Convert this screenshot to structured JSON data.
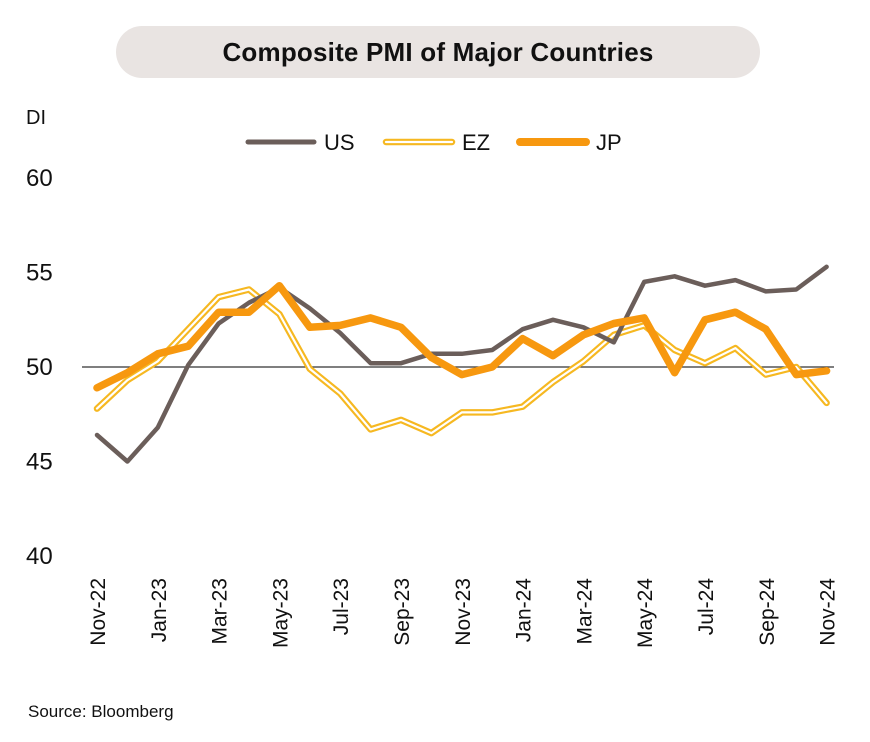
{
  "chart_data": {
    "type": "line",
    "title": "Composite PMI of Major Countries",
    "ylabel": "DI",
    "source": "Source: Bloomberg",
    "ylim": [
      40,
      60
    ],
    "yticks": [
      40,
      45,
      50,
      55,
      60
    ],
    "reference_line": 50,
    "grid": false,
    "legend_position": "top",
    "categories": [
      "Nov-22",
      "Dec-22",
      "Jan-23",
      "Feb-23",
      "Mar-23",
      "Apr-23",
      "May-23",
      "Jun-23",
      "Jul-23",
      "Aug-23",
      "Sep-23",
      "Oct-23",
      "Nov-23",
      "Dec-23",
      "Jan-24",
      "Feb-24",
      "Mar-24",
      "Apr-24",
      "May-24",
      "Jun-24",
      "Jul-24",
      "Aug-24",
      "Sep-24",
      "Oct-24",
      "Nov-24"
    ],
    "x_tick_labels": [
      "Nov-22",
      "Jan-23",
      "Mar-23",
      "May-23",
      "Jul-23",
      "Sep-23",
      "Nov-23",
      "Jan-24",
      "Mar-24",
      "May-24",
      "Jul-24",
      "Sep-24",
      "Nov-24"
    ],
    "series": [
      {
        "name": "US",
        "style": "solid",
        "color": "#6b5e5a",
        "values": [
          46.4,
          45.0,
          46.8,
          50.1,
          52.3,
          53.4,
          54.2,
          53.1,
          51.8,
          50.2,
          50.2,
          50.7,
          50.7,
          50.9,
          52.0,
          52.5,
          52.1,
          51.3,
          54.5,
          54.8,
          54.3,
          54.6,
          54.0,
          54.1,
          55.3
        ]
      },
      {
        "name": "EZ",
        "style": "double",
        "color": "#f6b821",
        "values": [
          47.8,
          49.3,
          50.3,
          52.0,
          53.7,
          54.1,
          52.8,
          49.9,
          48.6,
          46.7,
          47.2,
          46.5,
          47.6,
          47.6,
          47.9,
          49.2,
          50.3,
          51.7,
          52.2,
          50.9,
          50.2,
          51.0,
          49.6,
          50.0,
          48.1
        ]
      },
      {
        "name": "JP",
        "style": "thick",
        "color": "#f7980f",
        "values": [
          48.9,
          49.7,
          50.7,
          51.1,
          52.9,
          52.9,
          54.3,
          52.1,
          52.2,
          52.6,
          52.1,
          50.5,
          49.6,
          50.0,
          51.5,
          50.6,
          51.7,
          52.3,
          52.6,
          49.7,
          52.5,
          52.9,
          52.0,
          49.6,
          49.8
        ]
      }
    ]
  }
}
